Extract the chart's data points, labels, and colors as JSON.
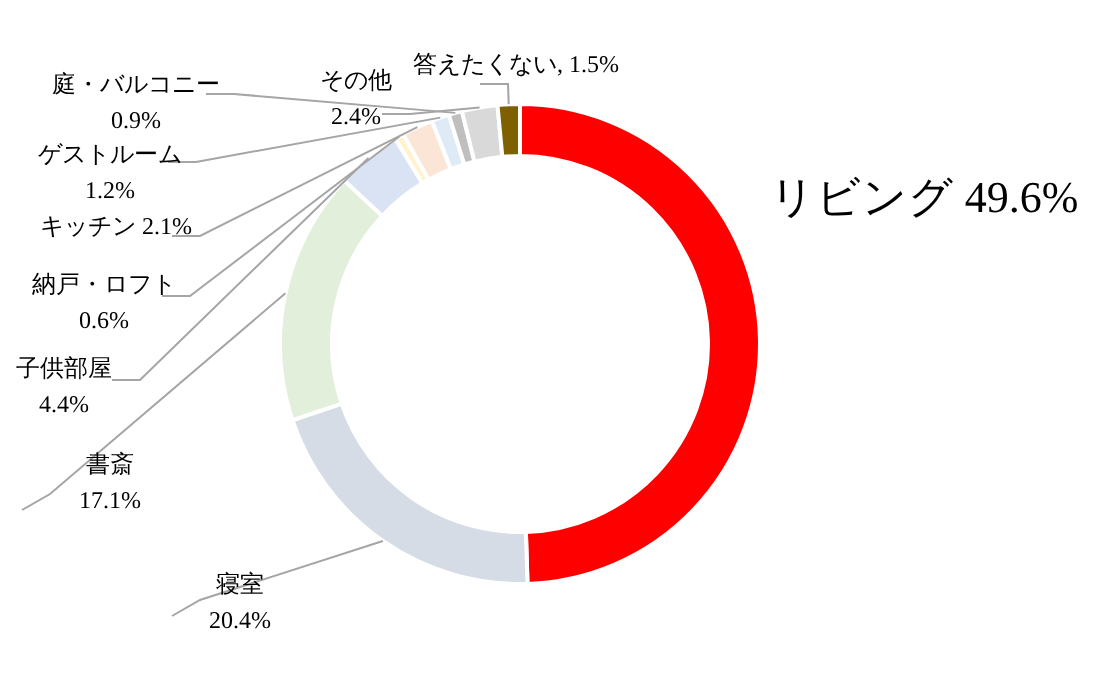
{
  "chart_data": {
    "type": "donut",
    "categories": [
      "リビング",
      "寝室",
      "書斎",
      "子供部屋",
      "納戸・ロフト",
      "キッチン",
      "ゲストルーム",
      "庭・バルコニー",
      "その他",
      "答えたくない"
    ],
    "values": [
      49.6,
      20.4,
      17.1,
      4.4,
      0.6,
      2.1,
      1.2,
      0.9,
      2.4,
      1.5
    ],
    "value_labels": [
      "49.6%",
      "20.4%",
      "17.1%",
      "4.4%",
      "0.6%",
      "2.1%",
      "1.2%",
      "0.9%",
      "2.4%",
      "1.5%"
    ],
    "colors": [
      "#ff0000",
      "#d6dce5",
      "#e2efda",
      "#dae3f3",
      "#fff2cc",
      "#fbe5d6",
      "#deebf7",
      "#bfbfbf",
      "#d9d9d9",
      "#7f6000"
    ]
  }
}
